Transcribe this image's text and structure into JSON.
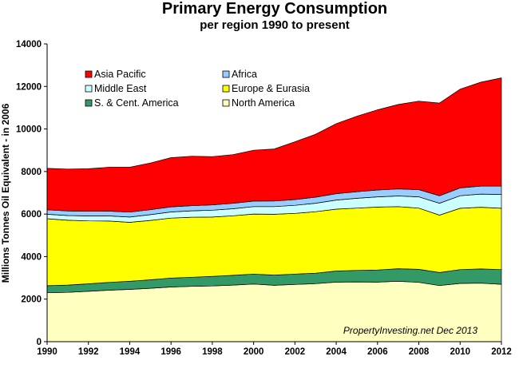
{
  "chart_data": {
    "type": "area",
    "stacked": true,
    "title": "Primary Energy Consumption",
    "subtitle": "per region 1990 to present",
    "ylabel": "Millions Tonnes Oil Equivalent - in 2006",
    "xlabel": "",
    "xlim": [
      1990,
      2012
    ],
    "ylim": [
      0,
      14000
    ],
    "x_ticks": [
      1990,
      1992,
      1994,
      1996,
      1998,
      2000,
      2002,
      2004,
      2006,
      2008,
      2010,
      2012
    ],
    "y_ticks": [
      0,
      2000,
      4000,
      6000,
      8000,
      10000,
      12000,
      14000
    ],
    "grid": false,
    "legend_position": "top-left",
    "annotation": "PropertyInvesting.net  Dec 2013",
    "x": [
      1990,
      1991,
      1992,
      1993,
      1994,
      1995,
      1996,
      1997,
      1998,
      1999,
      2000,
      2001,
      2002,
      2003,
      2004,
      2005,
      2006,
      2007,
      2008,
      2009,
      2010,
      2011,
      2012
    ],
    "series": [
      {
        "name": "North America",
        "color": "#ffffc0",
        "values": [
          2300,
          2320,
          2370,
          2420,
          2460,
          2510,
          2570,
          2600,
          2620,
          2660,
          2710,
          2650,
          2690,
          2730,
          2800,
          2810,
          2800,
          2840,
          2790,
          2640,
          2740,
          2750,
          2700
        ]
      },
      {
        "name": "S. & Cent. America",
        "color": "#339966",
        "values": [
          330,
          340,
          350,
          370,
          380,
          400,
          420,
          430,
          450,
          460,
          470,
          480,
          490,
          490,
          520,
          540,
          570,
          590,
          610,
          610,
          650,
          670,
          690
        ]
      },
      {
        "name": "Europe & Eurasia",
        "color": "#ffff00",
        "values": [
          3150,
          3050,
          2960,
          2880,
          2770,
          2790,
          2820,
          2820,
          2790,
          2800,
          2820,
          2860,
          2850,
          2890,
          2910,
          2930,
          2960,
          2920,
          2880,
          2700,
          2880,
          2900,
          2880
        ]
      },
      {
        "name": "Middle East",
        "color": "#ccffff",
        "values": [
          210,
          220,
          230,
          240,
          250,
          270,
          290,
          300,
          320,
          330,
          350,
          360,
          380,
          400,
          430,
          460,
          480,
          500,
          530,
          560,
          590,
          620,
          650
        ]
      },
      {
        "name": "Africa",
        "color": "#99ccff",
        "values": [
          210,
          215,
          220,
          225,
          230,
          235,
          240,
          245,
          250,
          255,
          260,
          265,
          270,
          285,
          300,
          310,
          320,
          330,
          340,
          350,
          370,
          375,
          390
        ]
      },
      {
        "name": "Asia Pacific",
        "color": "#ff0000",
        "values": [
          1950,
          1970,
          2000,
          2065,
          2110,
          2195,
          2310,
          2325,
          2270,
          2290,
          2390,
          2445,
          2720,
          2955,
          3290,
          3550,
          3770,
          3970,
          4160,
          4360,
          4640,
          4885,
          5090
        ]
      }
    ],
    "legend_order": [
      "Asia Pacific",
      "Africa",
      "Middle East",
      "Europe & Eurasia",
      "S. & Cent. America",
      "North America"
    ]
  }
}
